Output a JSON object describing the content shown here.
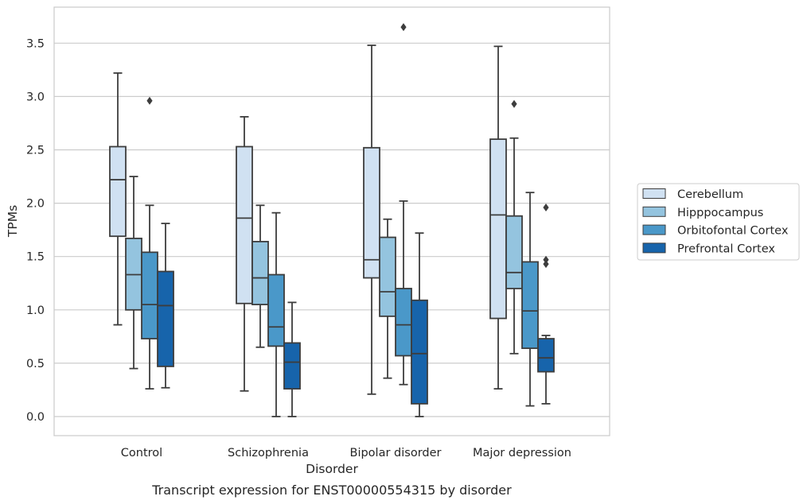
{
  "chart_data": {
    "type": "box",
    "title": "",
    "caption": "Transcript expression for ENST00000554315 by disorder",
    "xlabel": "Disorder",
    "ylabel": "TPMs",
    "ylim": [
      -0.17,
      3.86
    ],
    "yticks": [
      "0.0",
      "0.5",
      "1.0",
      "1.5",
      "2.0",
      "2.5",
      "3.0",
      "3.5"
    ],
    "grid": "horizontal",
    "legend_position": "right",
    "categories": [
      "Control",
      "Schizophrenia",
      "Bipolar disorder",
      "Major depression"
    ],
    "series": [
      {
        "name": "Cerebellum",
        "color": "#d0e1f2",
        "boxes": [
          {
            "whislo": 0.86,
            "q1": 1.69,
            "med": 2.22,
            "q3": 2.53,
            "whishi": 3.22,
            "fliers": []
          },
          {
            "whislo": 0.24,
            "q1": 1.06,
            "med": 1.86,
            "q3": 2.53,
            "whishi": 2.81,
            "fliers": []
          },
          {
            "whislo": 0.21,
            "q1": 1.3,
            "med": 1.47,
            "q3": 2.52,
            "whishi": 3.48,
            "fliers": []
          },
          {
            "whislo": 0.26,
            "q1": 0.92,
            "med": 1.89,
            "q3": 2.6,
            "whishi": 3.47,
            "fliers": []
          }
        ]
      },
      {
        "name": "Hipppocampus",
        "color": "#94c4df",
        "boxes": [
          {
            "whislo": 0.45,
            "q1": 1.0,
            "med": 1.33,
            "q3": 1.67,
            "whishi": 2.25,
            "fliers": []
          },
          {
            "whislo": 0.65,
            "q1": 1.05,
            "med": 1.3,
            "q3": 1.64,
            "whishi": 1.98,
            "fliers": []
          },
          {
            "whislo": 0.36,
            "q1": 0.94,
            "med": 1.17,
            "q3": 1.68,
            "whishi": 1.85,
            "fliers": []
          },
          {
            "whislo": 0.59,
            "q1": 1.2,
            "med": 1.35,
            "q3": 1.88,
            "whishi": 2.61,
            "fliers": [
              2.93
            ]
          }
        ]
      },
      {
        "name": "Orbitofontal Cortex",
        "color": "#4a98c9",
        "boxes": [
          {
            "whislo": 0.26,
            "q1": 0.73,
            "med": 1.05,
            "q3": 1.54,
            "whishi": 1.98,
            "fliers": [
              2.96
            ]
          },
          {
            "whislo": 0.0,
            "q1": 0.66,
            "med": 0.84,
            "q3": 1.33,
            "whishi": 1.91,
            "fliers": []
          },
          {
            "whislo": 0.3,
            "q1": 0.57,
            "med": 0.86,
            "q3": 1.2,
            "whishi": 2.02,
            "fliers": [
              3.65
            ]
          },
          {
            "whislo": 0.1,
            "q1": 0.64,
            "med": 0.99,
            "q3": 1.45,
            "whishi": 2.1,
            "fliers": []
          }
        ]
      },
      {
        "name": "Prefrontal Cortex",
        "color": "#1764ab",
        "boxes": [
          {
            "whislo": 0.27,
            "q1": 0.47,
            "med": 1.04,
            "q3": 1.36,
            "whishi": 1.81,
            "fliers": []
          },
          {
            "whislo": 0.0,
            "q1": 0.26,
            "med": 0.51,
            "q3": 0.69,
            "whishi": 1.07,
            "fliers": []
          },
          {
            "whislo": 0.0,
            "q1": 0.12,
            "med": 0.59,
            "q3": 1.09,
            "whishi": 1.72,
            "fliers": []
          },
          {
            "whislo": 0.12,
            "q1": 0.42,
            "med": 0.55,
            "q3": 0.73,
            "whishi": 0.76,
            "fliers": [
              1.96,
              1.47,
              1.43
            ]
          }
        ]
      }
    ]
  }
}
